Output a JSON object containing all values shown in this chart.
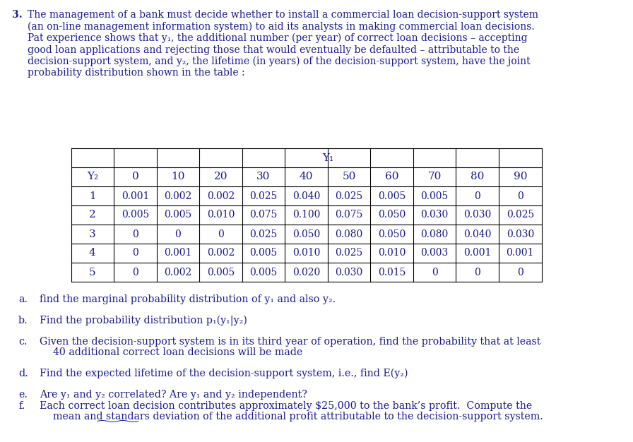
{
  "problem_number": "3.",
  "problem_text": [
    "The management of a bank must decide whether to install a commercial loan decision-support system",
    "(an on-line management information system) to aid its analysts in making commercial loan decisions.",
    "Pat experience shows that y₁, the additional number (per year) of correct loan decisions – accepting",
    "good loan applications and rejecting those that would eventually be defaulted – attributable to the",
    "decision-support system, and y₂, the lifetime (in years) of the decision-support system, have the joint",
    "probability distribution shown in the table :"
  ],
  "y1_header": "Y₁",
  "y2_label": "Y₂",
  "col_headers": [
    "0",
    "10",
    "20",
    "30",
    "40",
    "50",
    "60",
    "70",
    "80",
    "90"
  ],
  "rows": [
    {
      "y2": "1",
      "values": [
        "0.001",
        "0.002",
        "0.002",
        "0.025",
        "0.040",
        "0.025",
        "0.005",
        "0.005",
        "0",
        "0"
      ]
    },
    {
      "y2": "2",
      "values": [
        "0.005",
        "0.005",
        "0.010",
        "0.075",
        "0.100",
        "0.075",
        "0.050",
        "0.030",
        "0.030",
        "0.025"
      ]
    },
    {
      "y2": "3",
      "values": [
        "0",
        "0",
        "0",
        "0.025",
        "0.050",
        "0.080",
        "0.050",
        "0.080",
        "0.040",
        "0.030"
      ]
    },
    {
      "y2": "4",
      "values": [
        "0",
        "0.001",
        "0.002",
        "0.005",
        "0.010",
        "0.025",
        "0.010",
        "0.003",
        "0.001",
        "0.001"
      ]
    },
    {
      "y2": "5",
      "values": [
        "0",
        "0.002",
        "0.005",
        "0.005",
        "0.020",
        "0.030",
        "0.015",
        "0",
        "0",
        "0"
      ]
    }
  ],
  "question_a_label": "a.",
  "question_a_text": "find the marginal probability distribution of y₁ and also y₂.",
  "question_b_label": "b.",
  "question_b_text": "Find the probability distribution p₁(y₁|y₂)",
  "question_c_label": "c.",
  "question_c_text1": "Given the decision-support system is in its third year of operation, find the probability that at least",
  "question_c_text2": "40 additional correct loan decisions will be made",
  "question_d_label": "d.",
  "question_d_text": "Find the expected lifetime of the decision-support system, i.e., find E(y₂)",
  "question_e_label": "e.",
  "question_e_text": "Are y₁ and y₂ correlated? Are y₁ and y₂ independent?",
  "question_f_label": "f.",
  "question_f_text1": "Each correct loan decision contributes approximately $25,000 to the bank’s profit.  Compute the",
  "question_f_text2": "mean and standars deviation of the additional profit attributable to the decision-support system.",
  "text_color": "#1a1a8c",
  "bg_color": "#ffffff"
}
